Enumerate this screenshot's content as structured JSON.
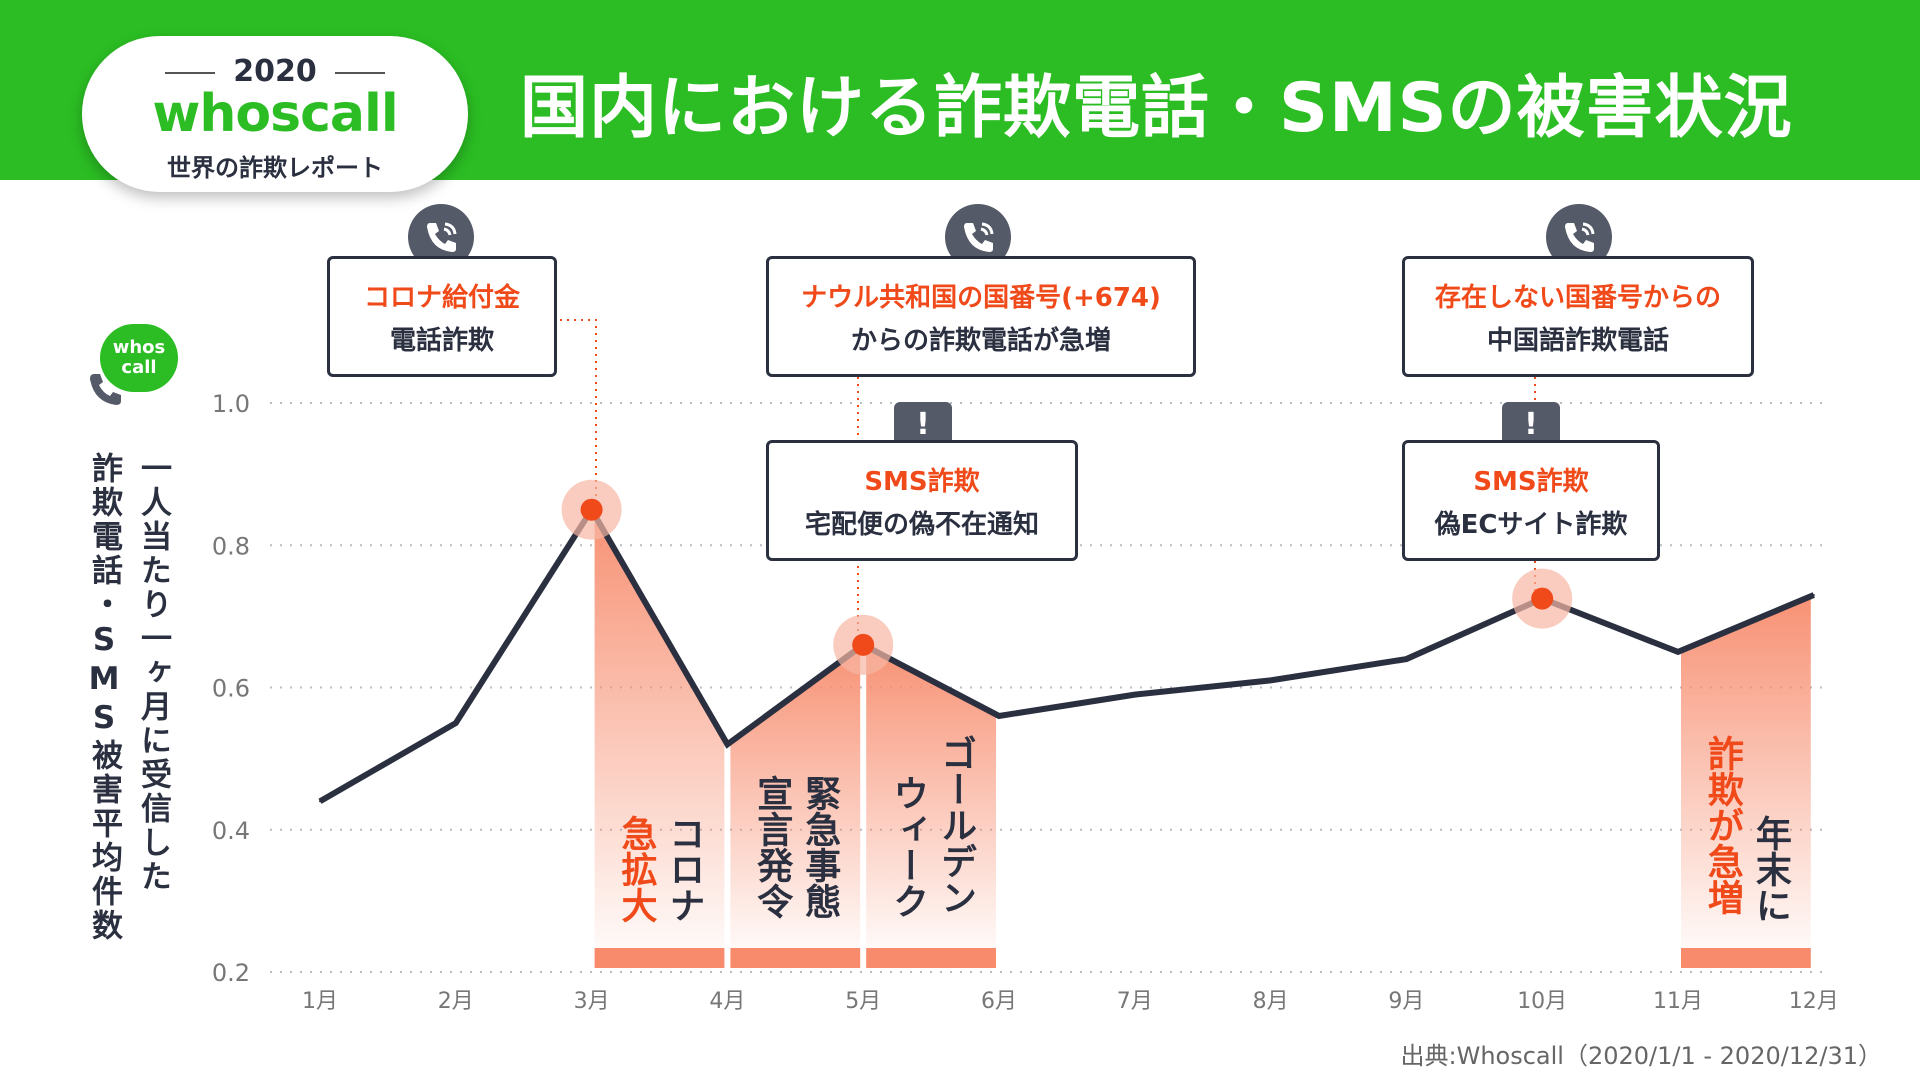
{
  "header": {
    "badge_year": "2020",
    "badge_brand": "whoscall",
    "badge_subtitle": "世界の詐欺レポート",
    "title": "国内における詐欺電話・SMSの被害状況"
  },
  "logo": {
    "line1": "whos",
    "line2": "call"
  },
  "y_title": {
    "col1": "一人当たり一ヶ月に受信した",
    "col2": "詐欺電話・SMS被害平均件数"
  },
  "source": "出典:Whoscall（2020/1/1 - 2020/12/31）",
  "callouts": {
    "c1": {
      "highlight": "コロナ給付金",
      "text": "電話詐欺"
    },
    "c2": {
      "highlight": "ナウル共和国の国番号(+674)",
      "text": "からの詐欺電話が急増"
    },
    "c3": {
      "highlight": "存在しない国番号からの",
      "text": "中国語詐欺電話"
    },
    "c4": {
      "highlight": "SMS詐欺",
      "text": "宅配便の偽不在通知"
    },
    "c5": {
      "highlight": "SMS詐欺",
      "text": "偽ECサイト詐欺"
    }
  },
  "alert_glyph": "!",
  "colors": {
    "green": "#2bbd23",
    "line": "#2b3040",
    "accent": "#f04a1a",
    "band": "#f78b6c"
  },
  "chart_data": {
    "type": "line",
    "title": "国内における詐欺電話・SMSの被害状況",
    "ylabel": "一人当たり一ヶ月に受信した詐欺電話・SMS被害平均件数",
    "categories": [
      "1月",
      "2月",
      "3月",
      "4月",
      "5月",
      "6月",
      "7月",
      "8月",
      "9月",
      "10月",
      "11月",
      "12月"
    ],
    "values": [
      0.44,
      0.55,
      0.85,
      0.52,
      0.66,
      0.56,
      0.59,
      0.61,
      0.64,
      0.725,
      0.65,
      0.73
    ],
    "ylim": [
      0.2,
      1.0
    ],
    "yticks": [
      "1.0",
      "0.8",
      "0.6",
      "0.4",
      "0.2"
    ],
    "ytick_values": [
      1.0,
      0.8,
      0.6,
      0.4,
      0.2
    ],
    "grid": true,
    "highlight_points": [
      2,
      4,
      9
    ],
    "annotations": [
      {
        "from": 2,
        "to": 3,
        "accent": "急拡大",
        "text": "コロナ",
        "order": "accent-first"
      },
      {
        "from": 3,
        "to": 4,
        "accent": "",
        "text": "宣言発令",
        "text2": "緊急事態",
        "order": "plain"
      },
      {
        "from": 4,
        "to": 5,
        "accent": "",
        "text": "ウィーク",
        "text2": "ゴールデン",
        "order": "plain"
      },
      {
        "from": 10,
        "to": 11,
        "accent": "詐欺が急増",
        "text": "年末に",
        "order": "accent-first"
      }
    ]
  }
}
